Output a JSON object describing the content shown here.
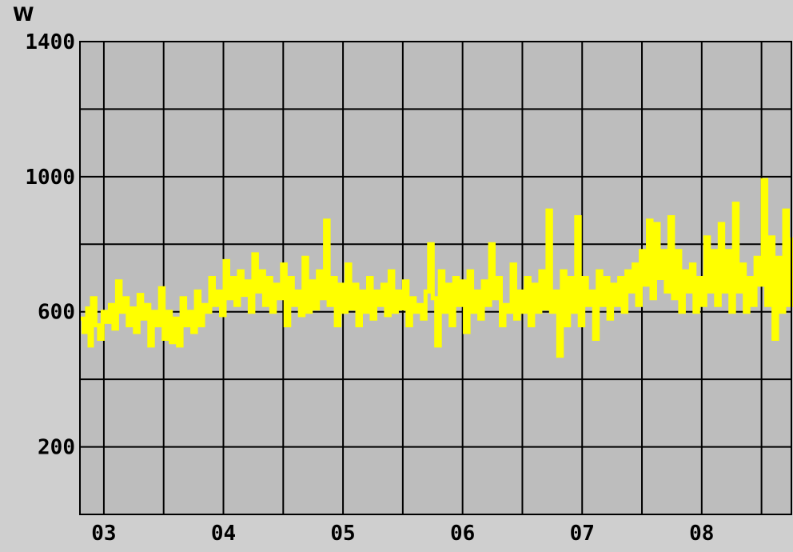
{
  "chart_data": {
    "type": "line",
    "ylabel": "W",
    "ylim": [
      0,
      1400
    ],
    "y_ticks": [
      1400,
      1000,
      600,
      200
    ],
    "y_gridlines": [
      200,
      400,
      600,
      800,
      1000,
      1200,
      1400
    ],
    "x_ticks": [
      "03",
      "04",
      "05",
      "06",
      "07",
      "08"
    ],
    "xlim": [
      2.8,
      8.75
    ],
    "grid": true,
    "colors": {
      "plot_bg": "#bdbdbd",
      "line": "#ffff00",
      "grid": "#000000",
      "frame_bg": "#cfcfcf"
    },
    "series": [
      {
        "values": [
          [
            2.8,
            580
          ],
          [
            2.83,
            540
          ],
          [
            2.86,
            610
          ],
          [
            2.88,
            500
          ],
          [
            2.9,
            640
          ],
          [
            2.93,
            560
          ],
          [
            2.96,
            520
          ],
          [
            2.99,
            600
          ],
          [
            3.02,
            570
          ],
          [
            3.05,
            620
          ],
          [
            3.08,
            550
          ],
          [
            3.11,
            690
          ],
          [
            3.14,
            600
          ],
          [
            3.17,
            640
          ],
          [
            3.2,
            560
          ],
          [
            3.23,
            610
          ],
          [
            3.26,
            540
          ],
          [
            3.29,
            650
          ],
          [
            3.32,
            580
          ],
          [
            3.35,
            620
          ],
          [
            3.38,
            500
          ],
          [
            3.41,
            600
          ],
          [
            3.44,
            560
          ],
          [
            3.47,
            670
          ],
          [
            3.5,
            520
          ],
          [
            3.53,
            600
          ],
          [
            3.56,
            510
          ],
          [
            3.59,
            580
          ],
          [
            3.62,
            500
          ],
          [
            3.65,
            640
          ],
          [
            3.68,
            560
          ],
          [
            3.71,
            600
          ],
          [
            3.74,
            540
          ],
          [
            3.77,
            660
          ],
          [
            3.8,
            560
          ],
          [
            3.83,
            620
          ],
          [
            3.86,
            600
          ],
          [
            3.89,
            700
          ],
          [
            3.92,
            620
          ],
          [
            3.95,
            660
          ],
          [
            3.98,
            590
          ],
          [
            4.01,
            750
          ],
          [
            4.04,
            640
          ],
          [
            4.07,
            700
          ],
          [
            4.1,
            620
          ],
          [
            4.13,
            720
          ],
          [
            4.16,
            650
          ],
          [
            4.19,
            690
          ],
          [
            4.22,
            600
          ],
          [
            4.25,
            770
          ],
          [
            4.28,
            660
          ],
          [
            4.31,
            720
          ],
          [
            4.34,
            620
          ],
          [
            4.37,
            700
          ],
          [
            4.4,
            600
          ],
          [
            4.43,
            680
          ],
          [
            4.46,
            640
          ],
          [
            4.49,
            740
          ],
          [
            4.52,
            560
          ],
          [
            4.55,
            700
          ],
          [
            4.58,
            620
          ],
          [
            4.61,
            660
          ],
          [
            4.64,
            590
          ],
          [
            4.67,
            760
          ],
          [
            4.7,
            600
          ],
          [
            4.73,
            690
          ],
          [
            4.76,
            610
          ],
          [
            4.79,
            720
          ],
          [
            4.82,
            640
          ],
          [
            4.85,
            870
          ],
          [
            4.88,
            620
          ],
          [
            4.91,
            700
          ],
          [
            4.94,
            560
          ],
          [
            4.97,
            680
          ],
          [
            5.0,
            600
          ],
          [
            5.03,
            740
          ],
          [
            5.06,
            610
          ],
          [
            5.09,
            680
          ],
          [
            5.12,
            560
          ],
          [
            5.15,
            660
          ],
          [
            5.18,
            600
          ],
          [
            5.21,
            700
          ],
          [
            5.24,
            580
          ],
          [
            5.27,
            660
          ],
          [
            5.3,
            620
          ],
          [
            5.33,
            680
          ],
          [
            5.36,
            590
          ],
          [
            5.39,
            720
          ],
          [
            5.42,
            600
          ],
          [
            5.45,
            660
          ],
          [
            5.48,
            610
          ],
          [
            5.51,
            690
          ],
          [
            5.54,
            560
          ],
          [
            5.57,
            640
          ],
          [
            5.6,
            600
          ],
          [
            5.63,
            620
          ],
          [
            5.66,
            580
          ],
          [
            5.69,
            660
          ],
          [
            5.72,
            800
          ],
          [
            5.75,
            640
          ],
          [
            5.78,
            500
          ],
          [
            5.81,
            720
          ],
          [
            5.84,
            600
          ],
          [
            5.87,
            680
          ],
          [
            5.9,
            560
          ],
          [
            5.93,
            700
          ],
          [
            5.96,
            620
          ],
          [
            5.99,
            690
          ],
          [
            6.02,
            540
          ],
          [
            6.05,
            720
          ],
          [
            6.08,
            600
          ],
          [
            6.11,
            660
          ],
          [
            6.14,
            580
          ],
          [
            6.17,
            690
          ],
          [
            6.2,
            620
          ],
          [
            6.23,
            800
          ],
          [
            6.26,
            640
          ],
          [
            6.29,
            700
          ],
          [
            6.32,
            560
          ],
          [
            6.35,
            620
          ],
          [
            6.38,
            600
          ],
          [
            6.41,
            740
          ],
          [
            6.44,
            580
          ],
          [
            6.47,
            660
          ],
          [
            6.5,
            600
          ],
          [
            6.53,
            700
          ],
          [
            6.56,
            560
          ],
          [
            6.59,
            680
          ],
          [
            6.62,
            600
          ],
          [
            6.65,
            720
          ],
          [
            6.68,
            610
          ],
          [
            6.71,
            900
          ],
          [
            6.74,
            600
          ],
          [
            6.77,
            660
          ],
          [
            6.8,
            470
          ],
          [
            6.83,
            720
          ],
          [
            6.86,
            560
          ],
          [
            6.89,
            700
          ],
          [
            6.92,
            600
          ],
          [
            6.95,
            880
          ],
          [
            6.98,
            560
          ],
          [
            7.01,
            700
          ],
          [
            7.04,
            620
          ],
          [
            7.07,
            660
          ],
          [
            7.1,
            520
          ],
          [
            7.13,
            720
          ],
          [
            7.16,
            620
          ],
          [
            7.19,
            700
          ],
          [
            7.22,
            580
          ],
          [
            7.25,
            680
          ],
          [
            7.28,
            620
          ],
          [
            7.31,
            700
          ],
          [
            7.34,
            600
          ],
          [
            7.37,
            720
          ],
          [
            7.4,
            660
          ],
          [
            7.43,
            740
          ],
          [
            7.46,
            620
          ],
          [
            7.49,
            780
          ],
          [
            7.52,
            680
          ],
          [
            7.55,
            870
          ],
          [
            7.58,
            640
          ],
          [
            7.61,
            860
          ],
          [
            7.64,
            700
          ],
          [
            7.67,
            780
          ],
          [
            7.7,
            660
          ],
          [
            7.73,
            880
          ],
          [
            7.76,
            640
          ],
          [
            7.79,
            780
          ],
          [
            7.82,
            600
          ],
          [
            7.85,
            720
          ],
          [
            7.88,
            660
          ],
          [
            7.91,
            740
          ],
          [
            7.94,
            600
          ],
          [
            7.97,
            700
          ],
          [
            8.0,
            620
          ],
          [
            8.03,
            820
          ],
          [
            8.06,
            660
          ],
          [
            8.09,
            780
          ],
          [
            8.12,
            620
          ],
          [
            8.15,
            860
          ],
          [
            8.18,
            660
          ],
          [
            8.21,
            780
          ],
          [
            8.24,
            600
          ],
          [
            8.27,
            920
          ],
          [
            8.3,
            660
          ],
          [
            8.33,
            740
          ],
          [
            8.36,
            600
          ],
          [
            8.39,
            700
          ],
          [
            8.42,
            620
          ],
          [
            8.45,
            760
          ],
          [
            8.48,
            680
          ],
          [
            8.51,
            990
          ],
          [
            8.54,
            620
          ],
          [
            8.57,
            820
          ],
          [
            8.6,
            520
          ],
          [
            8.63,
            760
          ],
          [
            8.66,
            600
          ],
          [
            8.69,
            900
          ],
          [
            8.72,
            620
          ],
          [
            8.75,
            820
          ]
        ]
      }
    ]
  }
}
